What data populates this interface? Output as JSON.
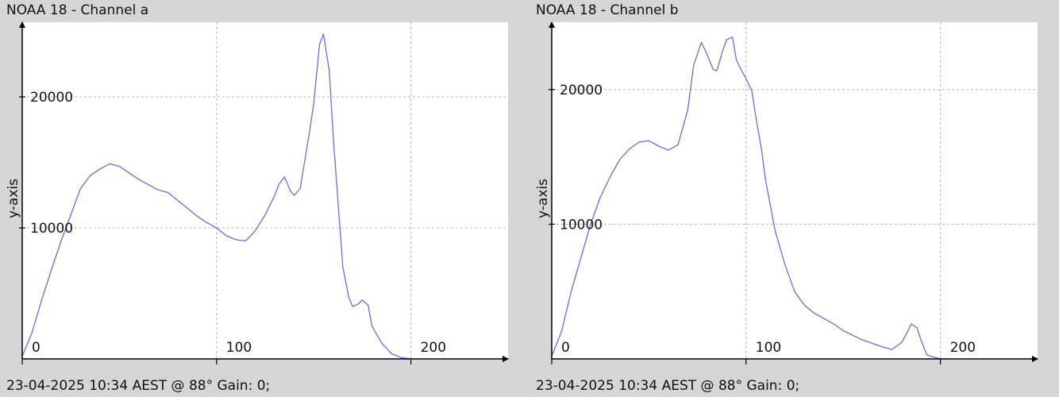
{
  "colors": {
    "background": "#d6d6d6",
    "plot_bg": "#ffffff",
    "line": "#6b6bdc",
    "grid": "#b4b4b4"
  },
  "chart_data": [
    {
      "type": "line",
      "title": "NOAA 18 - Channel a",
      "ylabel": "y-axis",
      "xlabel": "",
      "footer": "23-04-2025 10:34 AEST @ 88° Gain: 0;",
      "xlim": [
        0,
        250
      ],
      "ylim": [
        0,
        25700
      ],
      "xticks": [
        0,
        100,
        200
      ],
      "yticks": [
        10000,
        20000
      ],
      "grid": true,
      "x": [
        0,
        5,
        10,
        15,
        20,
        25,
        30,
        35,
        40,
        45,
        50,
        55,
        60,
        65,
        70,
        75,
        80,
        85,
        90,
        95,
        100,
        105,
        110,
        115,
        120,
        125,
        130,
        132,
        135,
        138,
        140,
        143,
        145,
        148,
        150,
        153,
        155,
        158,
        160,
        163,
        165,
        168,
        170,
        173,
        175,
        178,
        180,
        185,
        190,
        195,
        200
      ],
      "y": [
        200,
        2000,
        4500,
        6800,
        9000,
        11000,
        13000,
        14000,
        14500,
        14900,
        14700,
        14200,
        13700,
        13300,
        12900,
        12700,
        12100,
        11500,
        10900,
        10400,
        10000,
        9400,
        9100,
        9000,
        9800,
        11000,
        12500,
        13300,
        13900,
        12800,
        12500,
        13000,
        14800,
        17500,
        19500,
        24000,
        24800,
        22000,
        17000,
        11000,
        7000,
        4700,
        4000,
        4200,
        4500,
        4100,
        2500,
        1200,
        400,
        100,
        0
      ]
    },
    {
      "type": "line",
      "title": "NOAA 18 - Channel b",
      "ylabel": "y-axis",
      "xlabel": "",
      "footer": "23-04-2025 10:34 AEST @ 88° Gain: 0;",
      "xlim": [
        0,
        250
      ],
      "ylim": [
        0,
        25000
      ],
      "xticks": [
        0,
        100,
        200
      ],
      "yticks": [
        10000,
        20000
      ],
      "grid": true,
      "x": [
        0,
        5,
        10,
        15,
        20,
        25,
        30,
        35,
        40,
        45,
        50,
        55,
        60,
        65,
        70,
        73,
        77,
        80,
        83,
        85,
        88,
        90,
        93,
        95,
        97,
        100,
        103,
        105,
        108,
        110,
        115,
        120,
        125,
        130,
        135,
        140,
        145,
        150,
        160,
        170,
        175,
        180,
        183,
        185,
        188,
        190,
        193,
        195,
        200
      ],
      "y": [
        200,
        2000,
        5000,
        7500,
        10000,
        12000,
        13500,
        14800,
        15600,
        16100,
        16200,
        15800,
        15500,
        15900,
        18500,
        21800,
        23500,
        22600,
        21500,
        21400,
        22900,
        23700,
        23900,
        22200,
        21600,
        20800,
        19900,
        18000,
        15500,
        13300,
        9500,
        7000,
        5000,
        4000,
        3400,
        3000,
        2600,
        2100,
        1400,
        900,
        700,
        1200,
        2000,
        2600,
        2300,
        1400,
        300,
        200,
        0
      ]
    }
  ]
}
